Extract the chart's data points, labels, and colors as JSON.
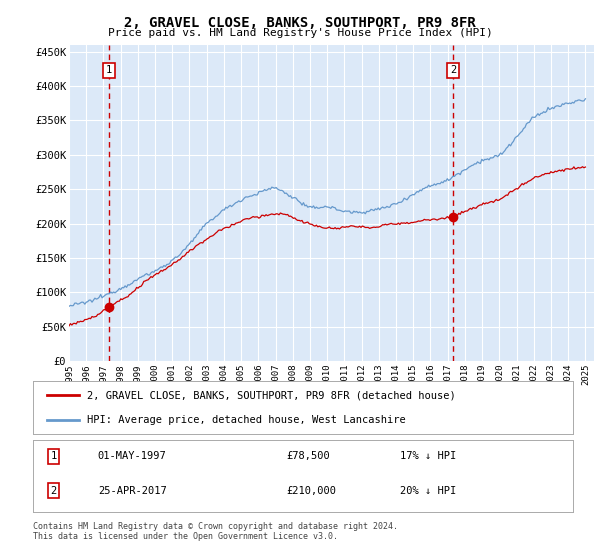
{
  "title": "2, GRAVEL CLOSE, BANKS, SOUTHPORT, PR9 8FR",
  "subtitle": "Price paid vs. HM Land Registry's House Price Index (HPI)",
  "legend_line1": "2, GRAVEL CLOSE, BANKS, SOUTHPORT, PR9 8FR (detached house)",
  "legend_line2": "HPI: Average price, detached house, West Lancashire",
  "annotation1_label": "1",
  "annotation1_date": "01-MAY-1997",
  "annotation1_price": "£78,500",
  "annotation1_hpi": "17% ↓ HPI",
  "annotation1_year": 1997.33,
  "annotation1_value": 78500,
  "annotation2_label": "2",
  "annotation2_date": "25-APR-2017",
  "annotation2_price": "£210,000",
  "annotation2_hpi": "20% ↓ HPI",
  "annotation2_year": 2017.32,
  "annotation2_value": 210000,
  "ylim": [
    0,
    460000
  ],
  "xlim_start": 1995,
  "xlim_end": 2025.5,
  "background_color": "#dce9f8",
  "grid_color": "#ffffff",
  "hpi_line_color": "#6699cc",
  "price_line_color": "#cc0000",
  "footer_text": "Contains HM Land Registry data © Crown copyright and database right 2024.\nThis data is licensed under the Open Government Licence v3.0.",
  "yticks": [
    0,
    50000,
    100000,
    150000,
    200000,
    250000,
    300000,
    350000,
    400000,
    450000
  ],
  "ytick_labels": [
    "£0",
    "£50K",
    "£100K",
    "£150K",
    "£200K",
    "£250K",
    "£300K",
    "£350K",
    "£400K",
    "£450K"
  ],
  "xticks": [
    1995,
    1996,
    1997,
    1998,
    1999,
    2000,
    2001,
    2002,
    2003,
    2004,
    2005,
    2006,
    2007,
    2008,
    2009,
    2010,
    2011,
    2012,
    2013,
    2014,
    2015,
    2016,
    2017,
    2018,
    2019,
    2020,
    2021,
    2022,
    2023,
    2024,
    2025
  ]
}
